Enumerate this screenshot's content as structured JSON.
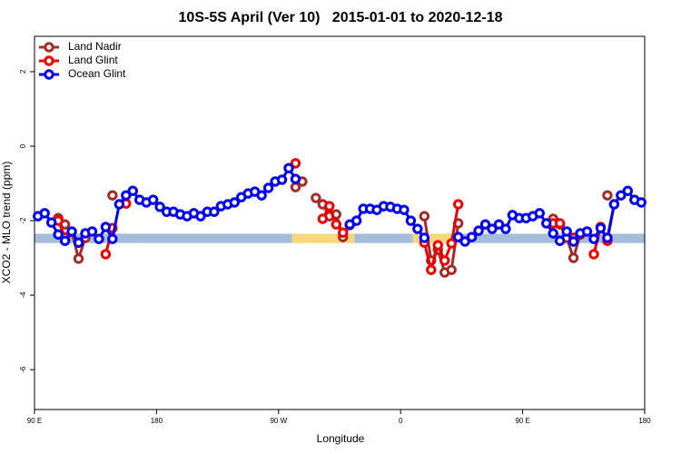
{
  "chart_data": {
    "type": "line",
    "title": "10S-5S April (Ver 10)   2015-01-01 to 2020-12-18",
    "x_label": "Longitude",
    "y_label": "XCO2 - MLO trend (ppm)",
    "xlim": [
      90,
      540
    ],
    "ylim": [
      -7.07,
      2.95
    ],
    "xticks": [
      {
        "value": 90,
        "label": "90 E"
      },
      180,
      {
        "value": 270,
        "label": "90 W"
      },
      {
        "value": 360,
        "label": "0"
      },
      {
        "value": 450,
        "label": "90 E"
      },
      {
        "value": 540,
        "label": "180"
      }
    ],
    "yticks": [
      -6,
      -4,
      -2,
      0,
      2
    ],
    "legend": "top-left",
    "band_range": [
      -2.6,
      -2.35
    ],
    "bands": [
      {
        "x0": 90,
        "x1": 280,
        "color": "#a5bddb"
      },
      {
        "x0": 280,
        "x1": 326,
        "color": "#f7d77c"
      },
      {
        "x0": 326,
        "x1": 369,
        "color": "#a5bddb"
      },
      {
        "x0": 369,
        "x1": 399,
        "color": "#f7d77c"
      },
      {
        "x0": 399,
        "x1": 540,
        "color": "#a5bddb"
      }
    ],
    "x": [
      92.5,
      97.5,
      102.5,
      107.5,
      112.5,
      117.5,
      122.5,
      127.5,
      132.5,
      137.5,
      142.5,
      147.5,
      152.5,
      157.5,
      162.5,
      167.5,
      172.5,
      177.5,
      182.5,
      187.5,
      192.5,
      197.5,
      202.5,
      207.5,
      212.5,
      217.5,
      222.5,
      227.5,
      232.5,
      237.5,
      242.5,
      247.5,
      252.5,
      257.5,
      262.5,
      267.5,
      272.5,
      277.5,
      282.5,
      287.5,
      292.5,
      297.5,
      302.5,
      307.5,
      312.5,
      317.5,
      322.5,
      327.5,
      332.5,
      337.5,
      342.5,
      347.5,
      352.5,
      357.5,
      362.5,
      367.5,
      372.5,
      377.5,
      382.5,
      387.5,
      392.5,
      397.5,
      402.5,
      407.5,
      412.5,
      417.5,
      422.5,
      427.5,
      432.5,
      437.5,
      442.5,
      447.5,
      452.5,
      457.5,
      462.5,
      467.5,
      472.5,
      477.5,
      482.5,
      487.5,
      492.5,
      497.5,
      502.5,
      507.5,
      512.5,
      517.5,
      522.5,
      527.5,
      532.5,
      537.5
    ],
    "series": [
      {
        "name": "Land Nadir",
        "color": "#a52a2a",
        "values": [
          null,
          null,
          null,
          -1.93,
          -2.1,
          -2.3,
          -3.02,
          -2.46,
          null,
          null,
          null,
          -1.32,
          null,
          null,
          null,
          null,
          null,
          null,
          null,
          null,
          null,
          null,
          null,
          null,
          null,
          null,
          null,
          null,
          null,
          null,
          null,
          null,
          null,
          null,
          null,
          null,
          null,
          null,
          -1.1,
          -0.95,
          null,
          -1.39,
          -1.56,
          -1.88,
          -1.83,
          -2.44,
          -2.12,
          null,
          null,
          null,
          null,
          null,
          null,
          null,
          null,
          null,
          null,
          -1.88,
          -3.07,
          -2.78,
          -3.39,
          -3.32,
          -2.07,
          null,
          null,
          null,
          null,
          null,
          null,
          null,
          null,
          null,
          null,
          null,
          null,
          null,
          -1.95,
          -2.1,
          -2.46,
          -3.0,
          -2.37,
          null,
          null,
          null,
          -1.32,
          null,
          null,
          null,
          null,
          null
        ]
      },
      {
        "name": "Land Glint",
        "color": "#ee0000",
        "values": [
          null,
          null,
          null,
          -2.0,
          -2.45,
          null,
          null,
          null,
          null,
          null,
          -2.9,
          -2.2,
          null,
          -1.54,
          null,
          null,
          null,
          null,
          null,
          null,
          null,
          null,
          null,
          null,
          null,
          null,
          null,
          null,
          null,
          null,
          null,
          null,
          null,
          null,
          null,
          null,
          null,
          null,
          -0.46,
          null,
          null,
          null,
          -1.95,
          -1.61,
          -2.1,
          -2.32,
          null,
          null,
          null,
          null,
          null,
          null,
          null,
          null,
          null,
          null,
          null,
          -2.59,
          -3.32,
          -2.66,
          -3.07,
          -2.61,
          -1.56,
          null,
          null,
          null,
          null,
          null,
          null,
          null,
          null,
          null,
          null,
          null,
          null,
          null,
          -2.07,
          -2.07,
          null,
          -2.46,
          -2.37,
          null,
          -2.9,
          -2.17,
          -2.54,
          -1.56,
          null,
          null,
          null,
          null
        ]
      },
      {
        "name": "Ocean Glint",
        "color": "#0000ee",
        "values": [
          -1.88,
          -1.8,
          -2.05,
          -2.37,
          -2.54,
          -2.29,
          -2.59,
          -2.34,
          -2.29,
          -2.49,
          -2.17,
          -2.49,
          -1.56,
          -1.32,
          -1.2,
          -1.44,
          -1.51,
          -1.44,
          -1.63,
          -1.76,
          -1.76,
          -1.83,
          -1.88,
          -1.8,
          -1.88,
          -1.76,
          -1.76,
          -1.61,
          -1.56,
          -1.51,
          -1.37,
          -1.27,
          -1.22,
          -1.32,
          -1.12,
          -0.95,
          -0.9,
          -0.59,
          -0.88,
          null,
          null,
          null,
          null,
          null,
          null,
          null,
          -2.1,
          -2.0,
          -1.68,
          -1.68,
          -1.71,
          -1.61,
          -1.63,
          -1.68,
          -1.71,
          -2.0,
          -2.22,
          -2.46,
          null,
          null,
          null,
          null,
          -2.44,
          -2.56,
          -2.44,
          -2.27,
          -2.1,
          -2.22,
          -2.1,
          -2.22,
          -1.85,
          -1.93,
          -1.93,
          -1.88,
          -1.8,
          -2.07,
          -2.34,
          -2.54,
          -2.29,
          -2.56,
          -2.34,
          -2.29,
          -2.49,
          -2.2,
          -2.46,
          -1.56,
          -1.32,
          -1.2,
          -1.44,
          -1.51
        ]
      }
    ]
  }
}
